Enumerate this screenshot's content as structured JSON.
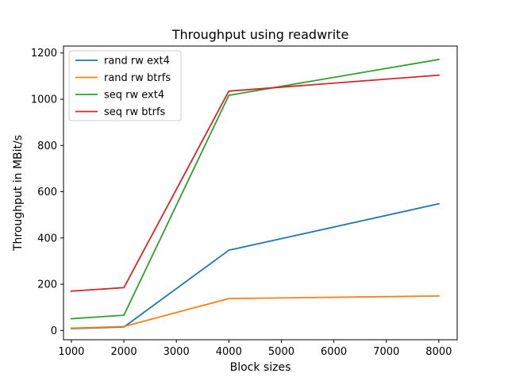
{
  "chart_data": {
    "type": "line",
    "title": "Throughput using readwrite",
    "xlabel": "Block sizes",
    "ylabel": "Throughput in MBit/s",
    "xlim": [
      850,
      8350
    ],
    "ylim": [
      -40,
      1230
    ],
    "xticks": [
      1000,
      2000,
      3000,
      4000,
      5000,
      6000,
      7000,
      8000
    ],
    "yticks": [
      0,
      200,
      400,
      600,
      800,
      1000,
      1200
    ],
    "grid": false,
    "legend_position": "top-left",
    "series": [
      {
        "name": "rand rw ext4",
        "color": "#1f77b4",
        "x": [
          1000,
          2000,
          4000,
          8000
        ],
        "y": [
          8,
          15,
          347,
          548
        ]
      },
      {
        "name": "rand rw btrfs",
        "color": "#ff7f0e",
        "x": [
          1000,
          2000,
          4000,
          8000
        ],
        "y": [
          10,
          17,
          138,
          149
        ]
      },
      {
        "name": "seq rw ext4",
        "color": "#2ca02c",
        "x": [
          1000,
          2000,
          4000,
          8000
        ],
        "y": [
          51,
          66,
          1017,
          1172
        ]
      },
      {
        "name": "seq rw btrfs",
        "color": "#d62728",
        "x": [
          1000,
          2000,
          4000,
          8000
        ],
        "y": [
          170,
          185,
          1035,
          1104
        ]
      }
    ]
  }
}
